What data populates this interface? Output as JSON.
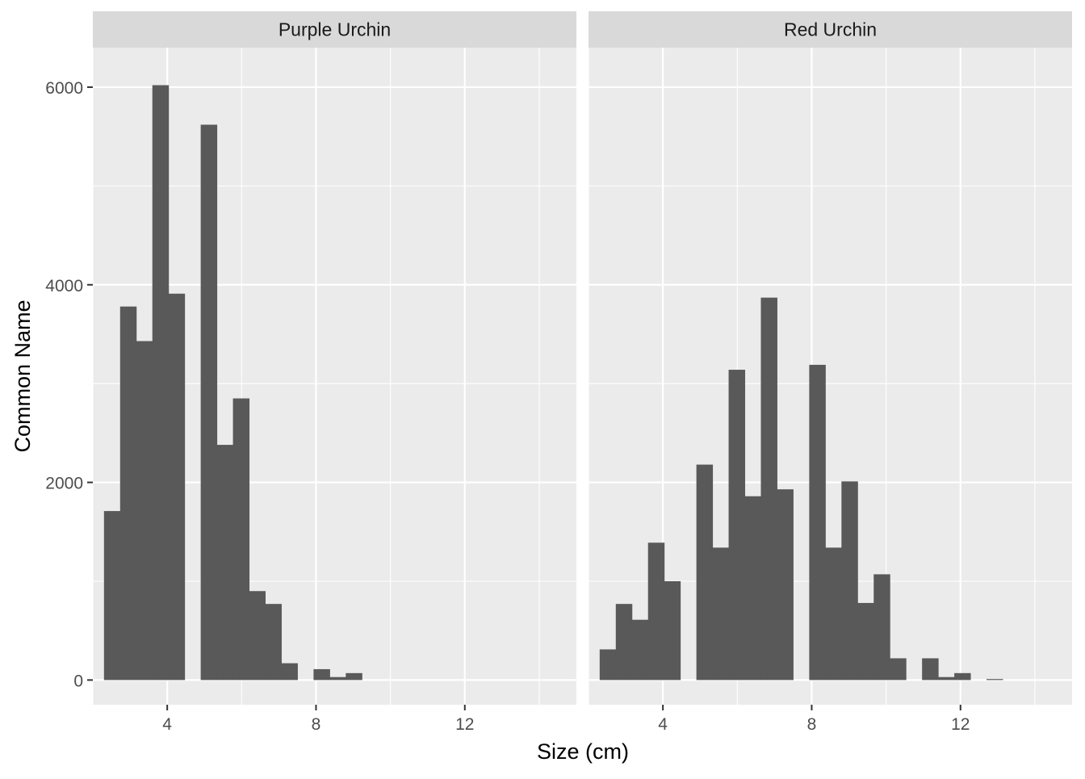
{
  "chart_data": {
    "type": "bar",
    "subtype": "faceted-histogram",
    "xlabel": "Size (cm)",
    "ylabel": "Common Name",
    "xlim": [
      2.0,
      15.0
    ],
    "ylim": [
      -250,
      6400
    ],
    "x_ticks": [
      4,
      8,
      12
    ],
    "y_ticks": [
      0,
      2000,
      4000,
      6000
    ],
    "x_tick_labels": [
      "4",
      "8",
      "12"
    ],
    "y_tick_labels": [
      "0",
      "2000",
      "4000",
      "6000"
    ],
    "bin_width": 0.4333,
    "grid": true,
    "background": "#ebebeb",
    "strip_color": "#d9d9d9",
    "bar_color": "#595959",
    "gridline_color": "#ffffff",
    "facets": [
      {
        "name": "Purple Urchin",
        "bin_starts": [
          2.3,
          2.7333,
          3.1667,
          3.6,
          4.0333,
          4.4667,
          4.9,
          5.3333,
          5.7667,
          6.2,
          6.6333,
          7.0667,
          7.5,
          7.9333,
          8.3667,
          8.8,
          9.2333
        ],
        "counts": [
          1710,
          3780,
          3430,
          6020,
          3910,
          0,
          5620,
          2380,
          2850,
          900,
          770,
          170,
          0,
          110,
          30,
          70,
          0
        ]
      },
      {
        "name": "Red Urchin",
        "bin_starts": [
          2.3,
          2.7333,
          3.1667,
          3.6,
          4.0333,
          4.4667,
          4.9,
          5.3333,
          5.7667,
          6.2,
          6.6333,
          7.0667,
          7.5,
          7.9333,
          8.3667,
          8.8,
          9.2333,
          9.6667,
          10.1,
          10.5333,
          10.9667,
          11.4,
          11.8333,
          12.2667,
          12.7
        ],
        "counts": [
          310,
          770,
          610,
          1390,
          1000,
          0,
          2180,
          1340,
          3140,
          1860,
          3870,
          1930,
          0,
          3190,
          1340,
          2010,
          780,
          1070,
          220,
          0,
          220,
          30,
          70,
          0,
          10
        ]
      }
    ]
  }
}
